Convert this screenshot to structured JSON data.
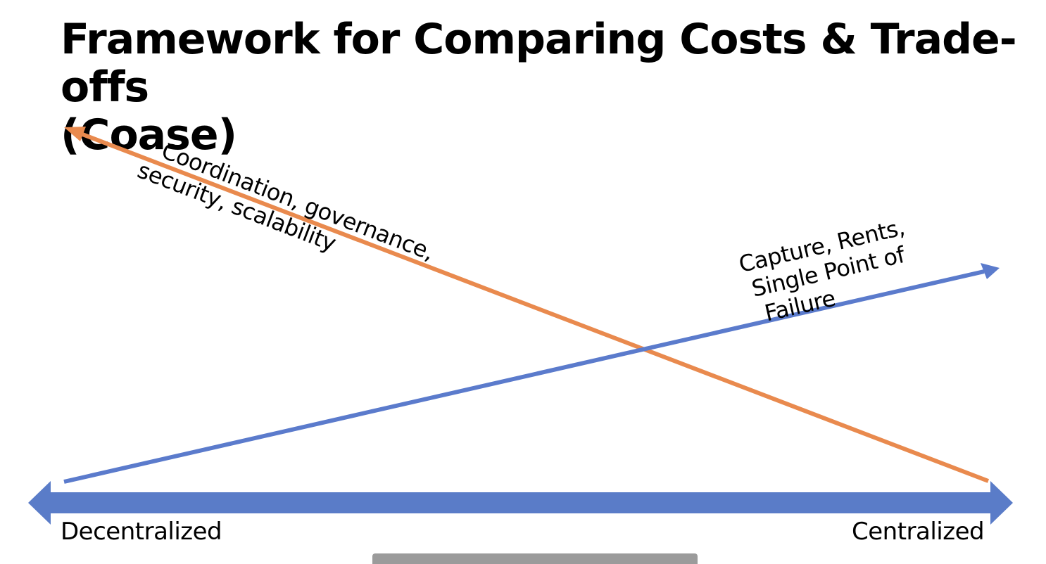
{
  "slide": {
    "title_lines": [
      "Framework for Comparing Costs & Trade-offs",
      "(Coase)"
    ]
  },
  "axis": {
    "left_label": "Decentralized",
    "right_label": "Centralized",
    "color": "#5a7cc8"
  },
  "arrows": {
    "decentralization_costs": {
      "lines": [
        "Coordination, governance,",
        "security, scalability"
      ],
      "color": "#e98a4e"
    },
    "centralization_costs": {
      "lines": [
        "Capture, Rents,",
        "Single Point of",
        "Failure"
      ],
      "color": "#5b7bcc"
    }
  }
}
